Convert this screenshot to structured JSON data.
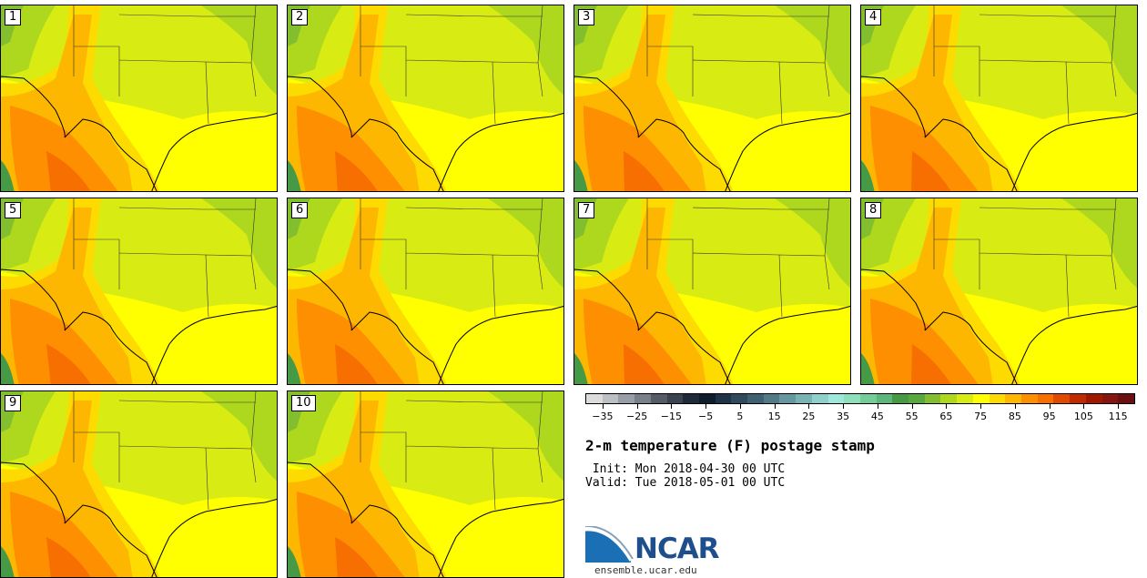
{
  "members": [
    {
      "label": "1"
    },
    {
      "label": "2"
    },
    {
      "label": "3"
    },
    {
      "label": "4"
    },
    {
      "label": "5"
    },
    {
      "label": "6"
    },
    {
      "label": "7"
    },
    {
      "label": "8"
    },
    {
      "label": "9"
    },
    {
      "label": "10"
    }
  ],
  "colorbar": {
    "colors": [
      "#dcdcdc",
      "#bcbfc4",
      "#999ea6",
      "#7a8089",
      "#555c66",
      "#3a4350",
      "#1e2a3a",
      "#0e1c2c",
      "#1f3346",
      "#2e4a5c",
      "#3e6072",
      "#527a86",
      "#66969e",
      "#7ab3b4",
      "#8fd0cc",
      "#9de8da",
      "#8ee0bc",
      "#74cc96",
      "#5cb87a",
      "#469a46",
      "#59a83e",
      "#82be2e",
      "#aed81e",
      "#d8ec14",
      "#ffff00",
      "#fedb00",
      "#feb700",
      "#fe8f00",
      "#f66f00",
      "#e04a00",
      "#c02a00",
      "#a01800",
      "#861410",
      "#6a1010"
    ],
    "tick_labels": [
      "−35",
      "−25",
      "−15",
      "−5",
      "5",
      "15",
      "25",
      "35",
      "45",
      "55",
      "65",
      "75",
      "85",
      "95",
      "105",
      "115"
    ],
    "range": [
      -40,
      120
    ]
  },
  "title": "2-m temperature (F) postage stamp",
  "init": " Init: Mon 2018-04-30 00 UTC",
  "valid": "Valid: Tue 2018-05-01 00 UTC",
  "logo": {
    "text": "NCAR",
    "url": "ensemble.ucar.edu"
  }
}
